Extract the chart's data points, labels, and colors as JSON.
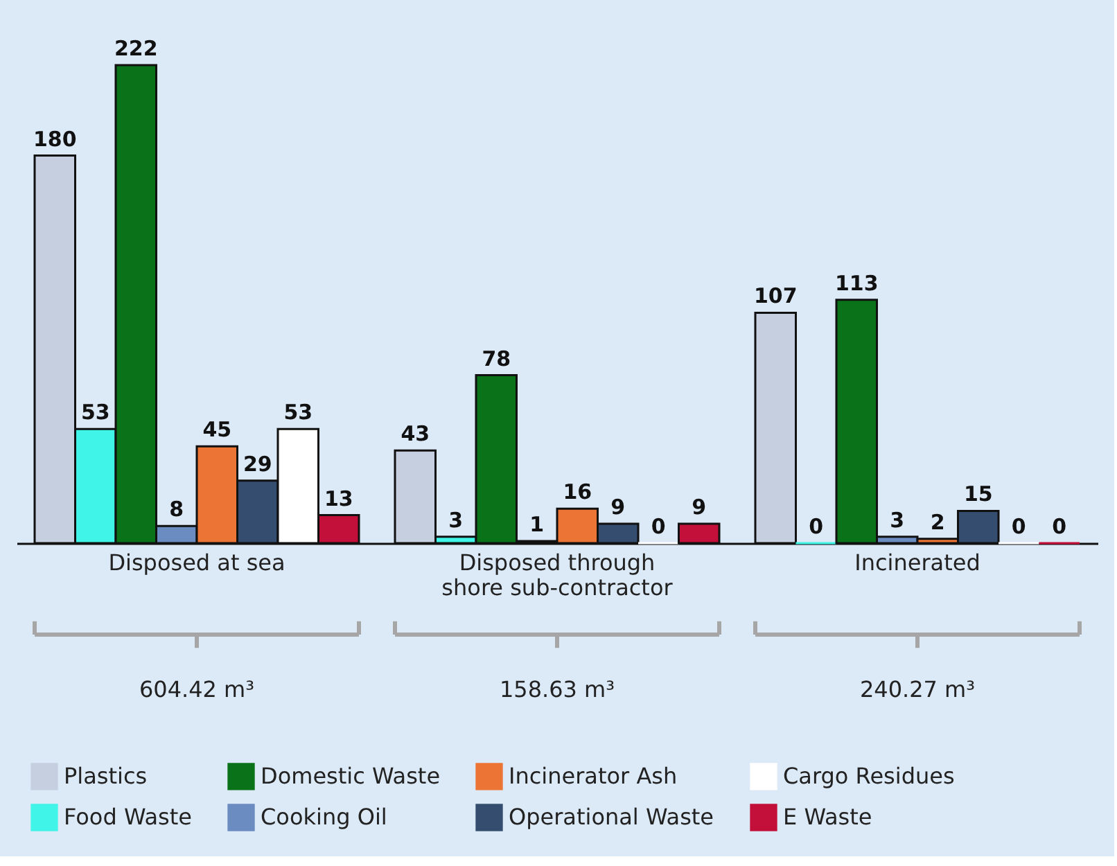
{
  "chart_data": {
    "type": "bar",
    "categories": [
      "Disposed at sea",
      "Disposed through\nshore sub-contractor",
      "Incinerated"
    ],
    "series": [
      {
        "name": "Plastics",
        "color": "#c5cfe0",
        "values": [
          180,
          43,
          107
        ]
      },
      {
        "name": "Food Waste",
        "color": "#40f5e8",
        "values": [
          53,
          3,
          0
        ]
      },
      {
        "name": "Domestic Waste",
        "color": "#0a7219",
        "values": [
          222,
          78,
          113
        ]
      },
      {
        "name": "Cooking Oil",
        "color": "#6b8cc0",
        "values": [
          8,
          1,
          3
        ]
      },
      {
        "name": "Incinerator Ash",
        "color": "#ec7434",
        "values": [
          45,
          16,
          2
        ]
      },
      {
        "name": "Operational Waste",
        "color": "#354d6e",
        "values": [
          29,
          9,
          15
        ]
      },
      {
        "name": "Cargo Residues",
        "color": "#ffffff",
        "values": [
          53,
          0,
          0
        ]
      },
      {
        "name": "E Waste",
        "color": "#c2103a",
        "values": [
          13,
          9,
          0
        ]
      }
    ],
    "annotations": [
      "604.42 m³",
      "158.63 m³",
      "240.27 m³"
    ],
    "data_labels": true,
    "tick_labels": "x",
    "grid": false,
    "legend": "bottom"
  }
}
